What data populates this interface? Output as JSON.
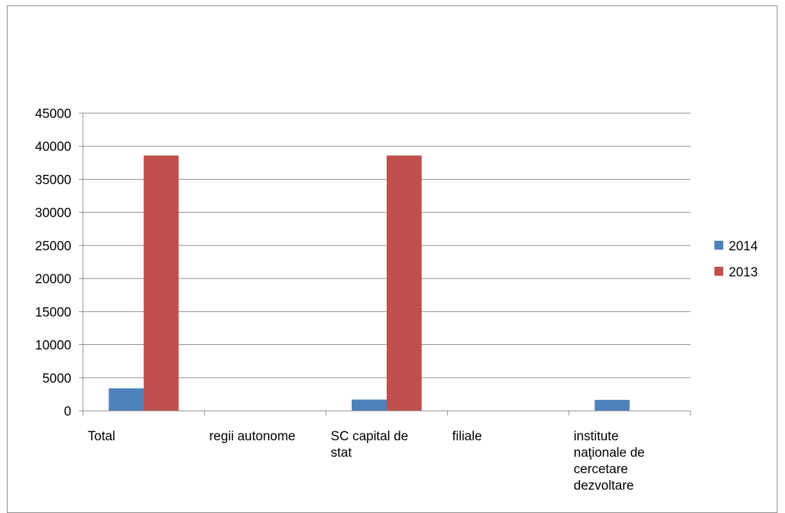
{
  "chart_data": {
    "type": "bar",
    "categories": [
      [
        "Total"
      ],
      [
        "regii autonome"
      ],
      [
        "SC capital de",
        "stat"
      ],
      [
        "filiale"
      ],
      [
        "institute",
        "naţionale de",
        "cercetare",
        "dezvoltare"
      ]
    ],
    "series": [
      {
        "name": "2014",
        "color": "#4f81bd",
        "values": [
          3400,
          0,
          1700,
          0,
          1650
        ]
      },
      {
        "name": "2013",
        "color": "#c0504d",
        "values": [
          38600,
          0,
          38600,
          0,
          0
        ]
      }
    ],
    "ylim": [
      0,
      45000
    ],
    "yticks": [
      0,
      5000,
      10000,
      15000,
      20000,
      25000,
      30000,
      35000,
      40000,
      45000
    ],
    "grid": true,
    "legend_position": "right"
  }
}
